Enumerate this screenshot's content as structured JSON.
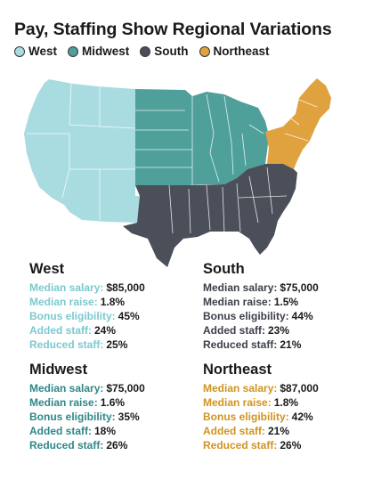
{
  "title": "Pay, Staffing Show Regional Variations",
  "colors": {
    "west": "#a9dce1",
    "midwest": "#4f9f9b",
    "south": "#4b4f59",
    "northeast": "#e0a23e",
    "state_border": "#ffffff"
  },
  "legend": [
    {
      "key": "west",
      "label": "West",
      "color": "#a9dce1"
    },
    {
      "key": "midwest",
      "label": "Midwest",
      "color": "#4f9f9b"
    },
    {
      "key": "south",
      "label": "South",
      "color": "#4b4f59"
    },
    {
      "key": "northeast",
      "label": "Northeast",
      "color": "#e0a23e"
    }
  ],
  "regions": {
    "west": {
      "name": "West",
      "stats": [
        {
          "label": "Median salary:",
          "value": "$85,000"
        },
        {
          "label": "Median raise:",
          "value": "1.8%"
        },
        {
          "label": "Bonus eligibility:",
          "value": "45%"
        },
        {
          "label": "Added staff:",
          "value": "24%"
        },
        {
          "label": "Reduced staff:",
          "value": "25%"
        }
      ]
    },
    "south": {
      "name": "South",
      "stats": [
        {
          "label": "Median salary:",
          "value": "$75,000"
        },
        {
          "label": "Median raise:",
          "value": "1.5%"
        },
        {
          "label": "Bonus eligibility:",
          "value": "44%"
        },
        {
          "label": "Added staff:",
          "value": "23%"
        },
        {
          "label": "Reduced staff:",
          "value": "21%"
        }
      ]
    },
    "midwest": {
      "name": "Midwest",
      "stats": [
        {
          "label": "Median salary:",
          "value": "$75,000"
        },
        {
          "label": "Median raise:",
          "value": "1.6%"
        },
        {
          "label": "Bonus eligibility:",
          "value": "35%"
        },
        {
          "label": "Added staff:",
          "value": "18%"
        },
        {
          "label": "Reduced staff:",
          "value": "26%"
        }
      ]
    },
    "northeast": {
      "name": "Northeast",
      "stats": [
        {
          "label": "Median salary:",
          "value": "$87,000"
        },
        {
          "label": "Median raise:",
          "value": "1.8%"
        },
        {
          "label": "Bonus eligibility:",
          "value": "42%"
        },
        {
          "label": "Added staff:",
          "value": "21%"
        },
        {
          "label": "Reduced staff:",
          "value": "26%"
        }
      ]
    }
  }
}
